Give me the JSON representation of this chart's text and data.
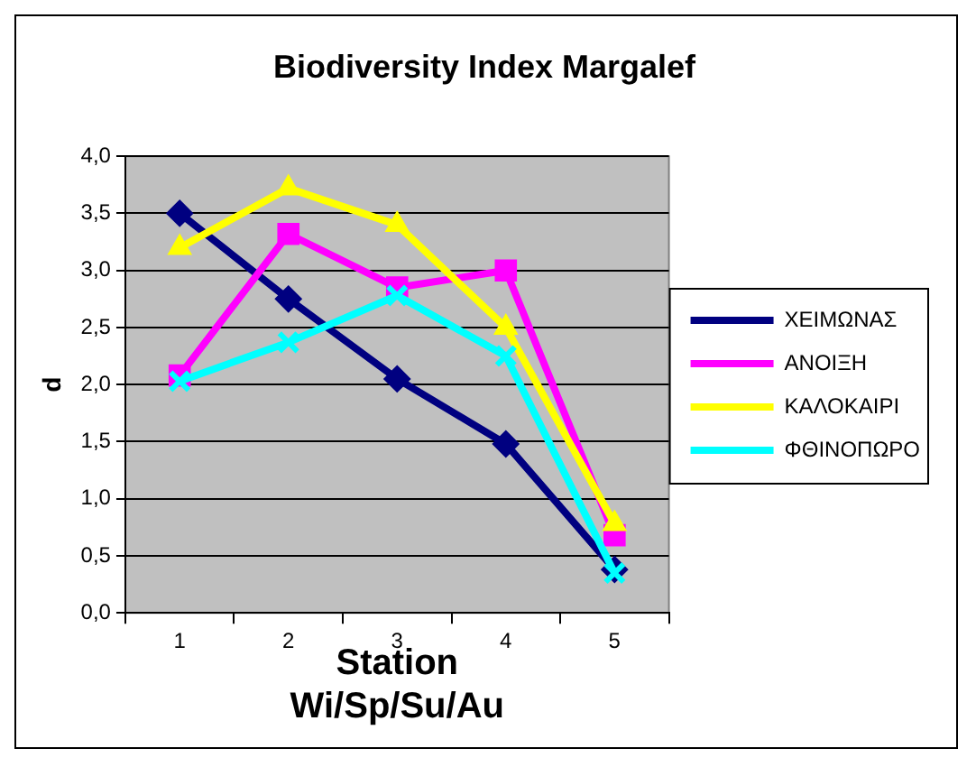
{
  "chart_data": {
    "type": "line",
    "title": "Biodiversity Index Margalef",
    "xlabel": "Station Wi/Sp/Su/Au",
    "ylabel": "d",
    "categories": [
      "1",
      "2",
      "3",
      "4",
      "5"
    ],
    "series": [
      {
        "name": "ΧΕΙΜΩΝΑΣ",
        "color": "#000080",
        "marker": "diamond",
        "values": [
          3.5,
          2.75,
          2.05,
          1.48,
          0.38
        ]
      },
      {
        "name": "ΑΝΟΙΞΗ",
        "color": "#ff00ff",
        "marker": "square",
        "values": [
          2.08,
          3.32,
          2.85,
          3.0,
          0.68
        ]
      },
      {
        "name": "ΚΑΛΟΚΑΙΡΙ",
        "color": "#ffff00",
        "marker": "triangle",
        "values": [
          3.2,
          3.72,
          3.4,
          2.5,
          0.78
        ]
      },
      {
        "name": "ΦΘΙΝΟΠΩΡΟ",
        "color": "#00ffff",
        "marker": "cross",
        "values": [
          2.03,
          2.37,
          2.78,
          2.25,
          0.35
        ]
      }
    ],
    "ylim": [
      0,
      4
    ],
    "yticks": [
      {
        "value": 0,
        "label": "0,0"
      },
      {
        "value": 0.5,
        "label": "0,5"
      },
      {
        "value": 1,
        "label": "1,0"
      },
      {
        "value": 1.5,
        "label": "1,5"
      },
      {
        "value": 2,
        "label": "2,0"
      },
      {
        "value": 2.5,
        "label": "2,5"
      },
      {
        "value": 3,
        "label": "3,0"
      },
      {
        "value": 3.5,
        "label": "3,5"
      },
      {
        "value": 4,
        "label": "4,0"
      }
    ],
    "grid": "y",
    "legend": "right",
    "line_style": "solid"
  }
}
